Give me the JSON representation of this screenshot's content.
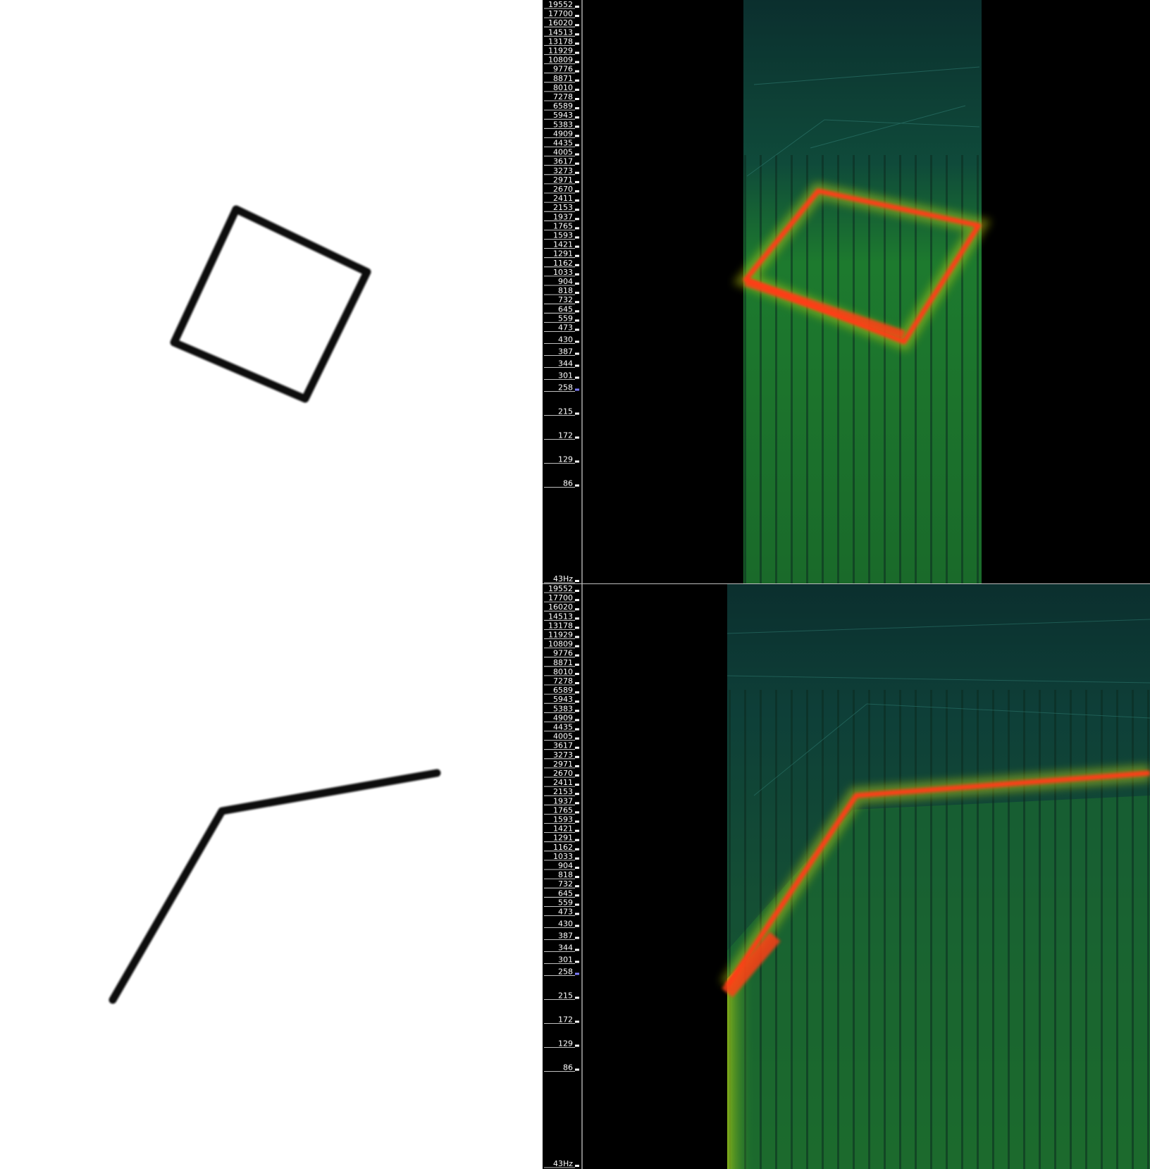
{
  "spectrograms": [
    {
      "id": "top",
      "axis": {
        "tick_labels": [
          "19552",
          "17700",
          "16020",
          "14513",
          "13178",
          "11929",
          "10809",
          "9776",
          "8871",
          "8010",
          "7278",
          "6589",
          "5943",
          "5383",
          "4909",
          "4435",
          "4005",
          "3617",
          "3273",
          "2971",
          "2670",
          "2411",
          "2153",
          "1937",
          "1765",
          "1593",
          "1421",
          "1291",
          "1162",
          "1033",
          "904",
          "818",
          "732",
          "645",
          "559",
          "473",
          "430",
          "387",
          "344",
          "301",
          "258",
          "215",
          "172",
          "129",
          "86",
          "43Hz"
        ]
      },
      "colors": {
        "background": "#000000",
        "noise": "#0e3b36",
        "body": "#1f7a2e",
        "ridge": "#ff3c14",
        "glow": "#c8d80a"
      }
    },
    {
      "id": "bottom",
      "axis": {
        "tick_labels": [
          "19552",
          "17700",
          "16020",
          "14513",
          "13178",
          "11929",
          "10809",
          "9776",
          "8871",
          "8010",
          "7278",
          "6589",
          "5943",
          "5383",
          "4909",
          "4435",
          "4005",
          "3617",
          "3273",
          "2971",
          "2670",
          "2411",
          "2153",
          "1937",
          "1765",
          "1593",
          "1421",
          "1291",
          "1162",
          "1033",
          "904",
          "818",
          "732",
          "645",
          "559",
          "473",
          "430",
          "387",
          "344",
          "301",
          "258",
          "215",
          "172",
          "129",
          "86",
          "43Hz"
        ]
      },
      "colors": {
        "background": "#000000",
        "noise": "#0e3b36",
        "body": "#1f7a2e",
        "ridge": "#ff3c14",
        "glow": "#c8d80a"
      }
    }
  ],
  "drawings": [
    {
      "id": "top",
      "shape": "rotated-square-outline",
      "stroke_color": "#111111"
    },
    {
      "id": "bottom",
      "shape": "bent-polyline",
      "stroke_color": "#111111"
    }
  ]
}
